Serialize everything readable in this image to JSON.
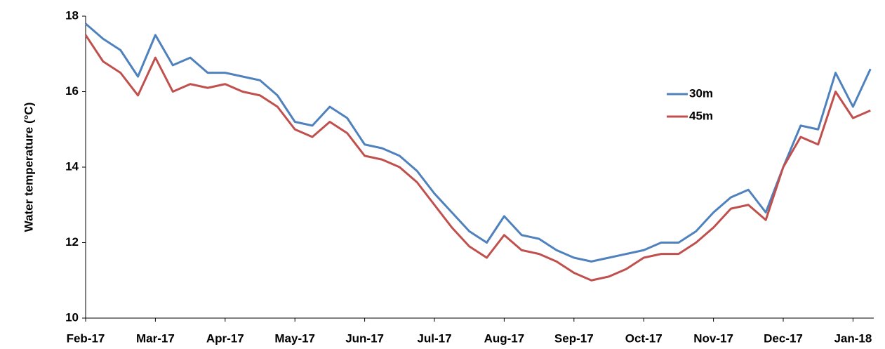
{
  "chart_data": {
    "type": "line",
    "y_label": "Water temperature (°C)",
    "categories": [
      "Feb-17",
      null,
      null,
      null,
      "Mar-17",
      null,
      null,
      null,
      "Apr-17",
      null,
      null,
      null,
      "May-17",
      null,
      null,
      null,
      "Jun-17",
      null,
      null,
      null,
      "Jul-17",
      null,
      null,
      null,
      "Aug-17",
      null,
      null,
      null,
      "Sep-17",
      null,
      null,
      null,
      "Oct-17",
      null,
      null,
      null,
      "Nov-17",
      null,
      null,
      null,
      "Dec-17",
      null,
      null,
      null,
      "Jan-18",
      null
    ],
    "series": [
      {
        "name": "30m",
        "color": "#4f81bd",
        "values": [
          17.8,
          17.4,
          17.1,
          16.4,
          17.5,
          16.7,
          16.9,
          16.5,
          16.5,
          16.4,
          16.3,
          15.9,
          15.2,
          15.1,
          15.6,
          15.3,
          14.6,
          14.5,
          14.3,
          13.9,
          13.3,
          12.8,
          12.3,
          12.0,
          12.7,
          12.2,
          12.1,
          11.8,
          11.6,
          11.5,
          11.6,
          11.7,
          11.8,
          12.0,
          12.0,
          12.3,
          12.8,
          13.2,
          13.4,
          12.8,
          14.0,
          15.1,
          15.0,
          16.5,
          15.6,
          16.6
        ]
      },
      {
        "name": "45m",
        "color": "#c0504d",
        "values": [
          17.5,
          16.8,
          16.5,
          15.9,
          16.9,
          16.0,
          16.2,
          16.1,
          16.2,
          16.0,
          15.9,
          15.6,
          15.0,
          14.8,
          15.2,
          14.9,
          14.3,
          14.2,
          14.0,
          13.6,
          13.0,
          12.4,
          11.9,
          11.6,
          12.2,
          11.8,
          11.7,
          11.5,
          11.2,
          11.0,
          11.1,
          11.3,
          11.6,
          11.7,
          11.7,
          12.0,
          12.4,
          12.9,
          13.0,
          12.6,
          14.0,
          14.8,
          14.6,
          16.0,
          15.3,
          15.5
        ]
      }
    ],
    "ylim": [
      10,
      18
    ],
    "yticks": [
      10,
      12,
      14,
      16,
      18
    ],
    "grid": false,
    "legend": "upper right"
  }
}
